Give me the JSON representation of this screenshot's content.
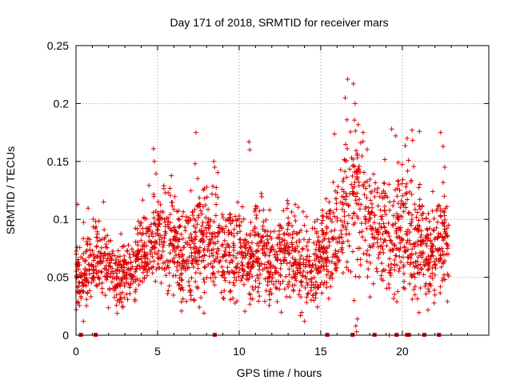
{
  "chart_data": {
    "type": "scatter",
    "title": "Day 171 of 2018, SRMTID for receiver mars",
    "xlabel": "GPS time / hours",
    "ylabel": "SRMTID / TECUs",
    "xlim": [
      0,
      25.3
    ],
    "ylim": [
      0,
      0.25
    ],
    "xticks": [
      0,
      5,
      10,
      15,
      20
    ],
    "xtick_labels": [
      "0",
      "5",
      "10",
      "15",
      "20"
    ],
    "yticks": [
      0,
      0.05,
      0.1,
      0.15,
      0.2,
      0.25
    ],
    "ytick_labels": [
      "0",
      "0.05",
      "0.1",
      "0.15",
      "0.2",
      "0.25"
    ],
    "grid": true,
    "legend": "none",
    "marker": "plus",
    "color": "#dd0000",
    "series": [
      {
        "name": "SRMTID",
        "trend_x": [
          0.0,
          0.5,
          1.0,
          1.5,
          2.0,
          2.5,
          3.0,
          3.5,
          4.0,
          4.5,
          5.0,
          5.5,
          6.0,
          6.5,
          7.0,
          7.5,
          8.0,
          8.5,
          9.0,
          9.5,
          10.0,
          10.5,
          11.0,
          11.5,
          12.0,
          12.5,
          13.0,
          13.5,
          14.0,
          14.5,
          15.0,
          15.5,
          16.0,
          16.5,
          17.0,
          17.5,
          18.0,
          18.5,
          19.0,
          19.5,
          20.0,
          20.5,
          21.0,
          21.5,
          22.0,
          22.5,
          23.0
        ],
        "trend_y": [
          0.055,
          0.05,
          0.06,
          0.065,
          0.062,
          0.045,
          0.052,
          0.065,
          0.07,
          0.078,
          0.085,
          0.08,
          0.075,
          0.068,
          0.07,
          0.08,
          0.078,
          0.085,
          0.075,
          0.07,
          0.072,
          0.065,
          0.075,
          0.07,
          0.065,
          0.06,
          0.07,
          0.065,
          0.06,
          0.055,
          0.065,
          0.08,
          0.09,
          0.1,
          0.12,
          0.11,
          0.1,
          0.085,
          0.09,
          0.075,
          0.1,
          0.09,
          0.08,
          0.07,
          0.065,
          0.08,
          0.085
        ],
        "spread": [
          0.018,
          0.022,
          0.022,
          0.02,
          0.022,
          0.022,
          0.025,
          0.022,
          0.028,
          0.025,
          0.028,
          0.028,
          0.028,
          0.028,
          0.032,
          0.035,
          0.03,
          0.028,
          0.03,
          0.028,
          0.03,
          0.03,
          0.032,
          0.028,
          0.028,
          0.028,
          0.03,
          0.028,
          0.028,
          0.025,
          0.028,
          0.032,
          0.04,
          0.045,
          0.05,
          0.045,
          0.04,
          0.038,
          0.04,
          0.035,
          0.04,
          0.04,
          0.035,
          0.032,
          0.03,
          0.035,
          0.03
        ],
        "n_points": 2200,
        "x_range": [
          0.0,
          22.85
        ],
        "peaks": [
          {
            "x": 0.1,
            "y": 0.113
          },
          {
            "x": 4.75,
            "y": 0.161
          },
          {
            "x": 4.8,
            "y": 0.15
          },
          {
            "x": 7.35,
            "y": 0.175
          },
          {
            "x": 7.3,
            "y": 0.148
          },
          {
            "x": 8.45,
            "y": 0.15
          },
          {
            "x": 8.5,
            "y": 0.145
          },
          {
            "x": 10.6,
            "y": 0.167
          },
          {
            "x": 10.65,
            "y": 0.16
          },
          {
            "x": 16.65,
            "y": 0.221
          },
          {
            "x": 16.5,
            "y": 0.205
          },
          {
            "x": 17.0,
            "y": 0.217
          },
          {
            "x": 17.1,
            "y": 0.2
          },
          {
            "x": 16.6,
            "y": 0.186
          },
          {
            "x": 17.6,
            "y": 0.175
          },
          {
            "x": 19.35,
            "y": 0.178
          },
          {
            "x": 19.6,
            "y": 0.172
          },
          {
            "x": 20.6,
            "y": 0.177
          },
          {
            "x": 21.05,
            "y": 0.176
          },
          {
            "x": 22.35,
            "y": 0.175
          },
          {
            "x": 22.5,
            "y": 0.163
          },
          {
            "x": 22.6,
            "y": 0.145
          }
        ],
        "near_zero": [
          {
            "x": 17.05,
            "y": 0.03
          },
          {
            "x": 17.15,
            "y": 0.008
          },
          {
            "x": 17.2,
            "y": 0.003
          },
          {
            "x": 17.25,
            "y": 0.014
          },
          {
            "x": 19.2,
            "y": 0.0
          }
        ],
        "zero_values": [
          0.3,
          1.2,
          8.5,
          15.4,
          16.95,
          18.3,
          19.65,
          20.3,
          20.4,
          21.35,
          22.25
        ]
      }
    ]
  }
}
